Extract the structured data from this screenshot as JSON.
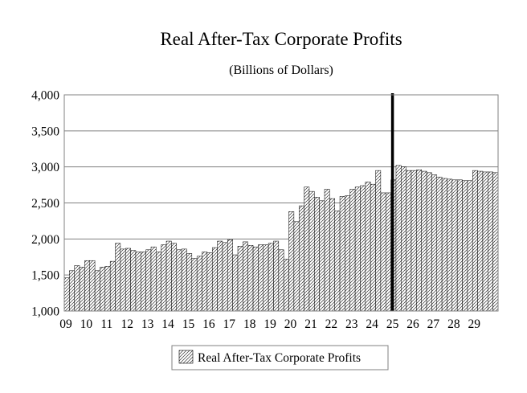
{
  "chart_data": {
    "type": "bar",
    "title": "Real After-Tax Corporate Profits",
    "subtitle": "(Billions of Dollars)",
    "xlabel": "",
    "ylabel": "",
    "ylim": [
      1000,
      4000
    ],
    "yticks": [
      "1,000",
      "1,500",
      "2,000",
      "2,500",
      "3,000",
      "3,500",
      "4,000"
    ],
    "ytick_values": [
      1000,
      1500,
      2000,
      2500,
      3000,
      3500,
      4000
    ],
    "xtick_labels": [
      "09",
      "10",
      "11",
      "12",
      "13",
      "14",
      "15",
      "16",
      "17",
      "18",
      "19",
      "20",
      "21",
      "22",
      "23",
      "24",
      "25",
      "26",
      "27",
      "28",
      "29"
    ],
    "grid": "horizontal",
    "legend_position": "bottom",
    "bar_fill": "diagonal-hatch",
    "vertical_marker_label": "25",
    "series": [
      {
        "name": "Real After-Tax Corporate Profits",
        "values": [
          1460,
          1560,
          1630,
          1610,
          1700,
          1700,
          1560,
          1610,
          1620,
          1690,
          1940,
          1860,
          1870,
          1840,
          1820,
          1820,
          1850,
          1890,
          1820,
          1920,
          1970,
          1940,
          1850,
          1860,
          1800,
          1730,
          1760,
          1820,
          1810,
          1880,
          1970,
          1950,
          1990,
          1780,
          1900,
          1960,
          1910,
          1890,
          1920,
          1920,
          1940,
          1970,
          1850,
          1720,
          2380,
          2240,
          2460,
          2720,
          2660,
          2580,
          2530,
          2690,
          2560,
          2390,
          2590,
          2600,
          2690,
          2720,
          2740,
          2790,
          2760,
          2950,
          2640,
          2640,
          2820,
          3020,
          3000,
          2950,
          2950,
          2960,
          2940,
          2920,
          2890,
          2860,
          2840,
          2830,
          2820,
          2820,
          2810,
          2810,
          2950,
          2940,
          2930,
          2930,
          2920
        ]
      }
    ]
  }
}
